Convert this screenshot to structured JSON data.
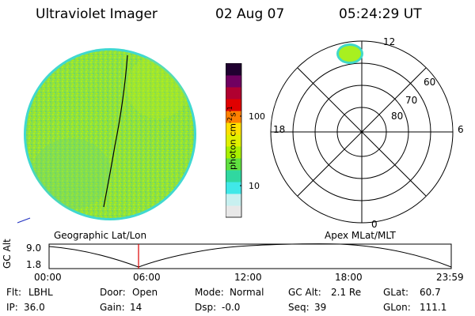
{
  "header": {
    "instrument": "Ultraviolet Imager",
    "date": "02 Aug 07",
    "time": "05:24:29 UT"
  },
  "colorbar": {
    "unit_label": "photon cm",
    "unit_sup1": "-2",
    "unit_mid": "s",
    "unit_sup2": "-1",
    "tick_100": "100",
    "tick_10": "10",
    "colors": [
      "#e8e8e8",
      "#c8f0f0",
      "#40e8e8",
      "#30d8a0",
      "#60e040",
      "#a8f000",
      "#e0f000",
      "#ffe000",
      "#ff8000",
      "#e00000",
      "#b00030",
      "#700060",
      "#200030"
    ]
  },
  "polar": {
    "lat_labels": [
      "60",
      "70",
      "80"
    ],
    "mlt_labels": {
      "top": "12",
      "left": "18",
      "right": "6",
      "bottom": "0"
    }
  },
  "footer_labels": {
    "left": "Geographic Lat/Lon",
    "right": "Apex MLat/MLT"
  },
  "alt_plot": {
    "axis_label": "GC Alt",
    "y_high": "9.0",
    "y_low": "1.8",
    "x_ticks": [
      "00:00",
      "06:00",
      "12:00",
      "18:00",
      "23:59"
    ],
    "marker_color": "#dd0000"
  },
  "stats": {
    "filter_label": "Flt:",
    "filter_value": "LBHL",
    "door_label": "Door:",
    "door_value": "Open",
    "mode_label": "Mode:",
    "mode_value": "Normal",
    "gcalt_label": "GC Alt:",
    "gcalt_value": "2.1 Re",
    "glat_label": "GLat:",
    "glat_value": "60.7",
    "ip_label": "IP:",
    "ip_value": "36.0",
    "gain_label": "Gain:",
    "gain_value": "14",
    "dsp_label": "Dsp:",
    "dsp_value": "-0.0",
    "seq_label": "Seq:",
    "seq_value": "39",
    "glon_label": "GLon:",
    "glon_value": "111.1"
  }
}
